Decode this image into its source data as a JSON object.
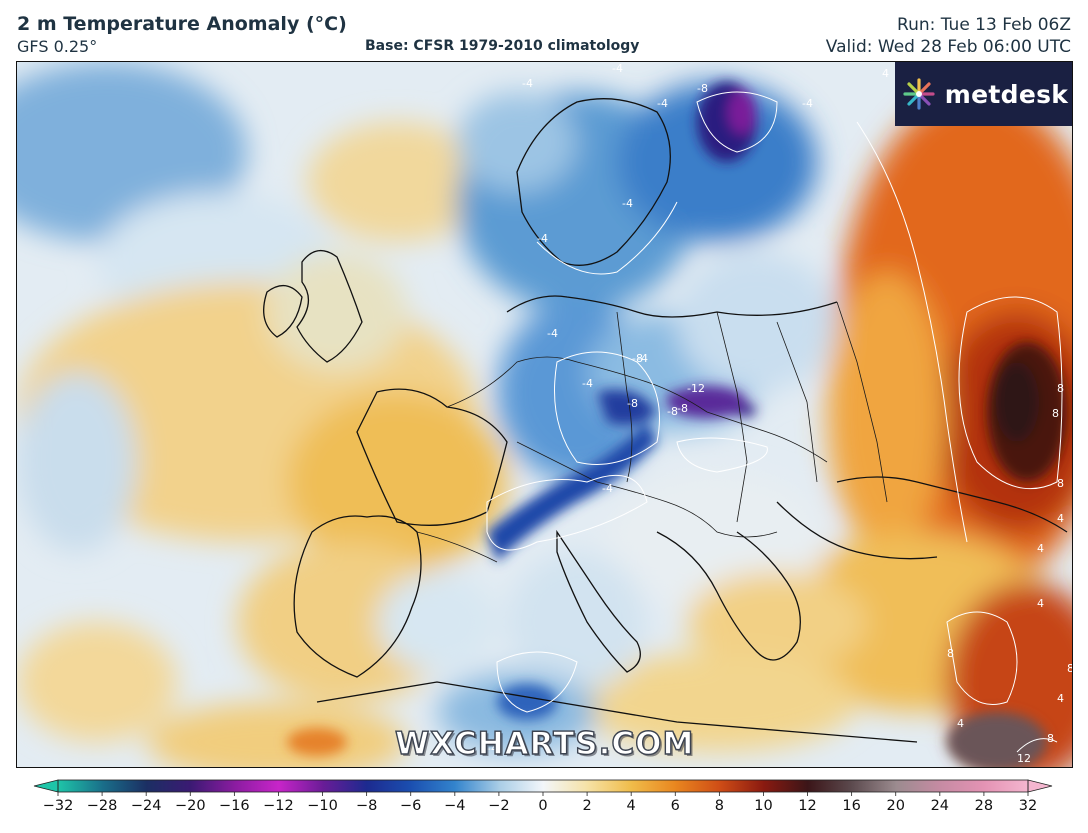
{
  "header": {
    "title": "2 m Temperature Anomaly (°C)",
    "model": "GFS 0.25°",
    "base": "Base: CFSR 1979-2010 climatology",
    "run": "Run: Tue 13 Feb 06Z",
    "valid": "Valid: Wed 28 Feb 06:00 UTC"
  },
  "logo": {
    "text": "metdesk",
    "icon": "metdesk-logo-icon"
  },
  "watermark": "WXCHARTS.COM",
  "map": {
    "variable": "2 m temperature anomaly",
    "unit": "°C",
    "region": "Europe",
    "contour_labels": [
      "-4",
      "-4",
      "-4",
      "-4",
      "-8",
      "-4",
      "-4",
      "-4",
      "-4",
      "-8",
      "-4",
      "-8",
      "-12",
      "-8",
      "-8",
      "-4",
      "-4",
      "4",
      "8",
      "8",
      "8",
      "4",
      "4",
      "4",
      "8",
      "4",
      "8",
      "4",
      "8",
      "12"
    ]
  },
  "legend": {
    "ticks": [
      "−32",
      "−28",
      "−24",
      "−20",
      "−16",
      "−12",
      "−10",
      "−8",
      "−6",
      "−4",
      "−2",
      "0",
      "2",
      "4",
      "6",
      "8",
      "10",
      "12",
      "16",
      "20",
      "24",
      "28",
      "32"
    ],
    "colors": [
      "#1ec5a8",
      "#1a6f8a",
      "#1b2f63",
      "#3b1a73",
      "#8a1ca0",
      "#c825c9",
      "#6a1c97",
      "#1c2a8f",
      "#1b4fb0",
      "#3384cd",
      "#a9cde6",
      "#f3f6fa",
      "#f6e2a6",
      "#f0bc4a",
      "#e9861f",
      "#cf4d16",
      "#8a1a10",
      "#3b1518",
      "#5c4a4e",
      "#9b8b8f",
      "#c68ba3",
      "#e493b4",
      "#f4b6cf"
    ]
  }
}
